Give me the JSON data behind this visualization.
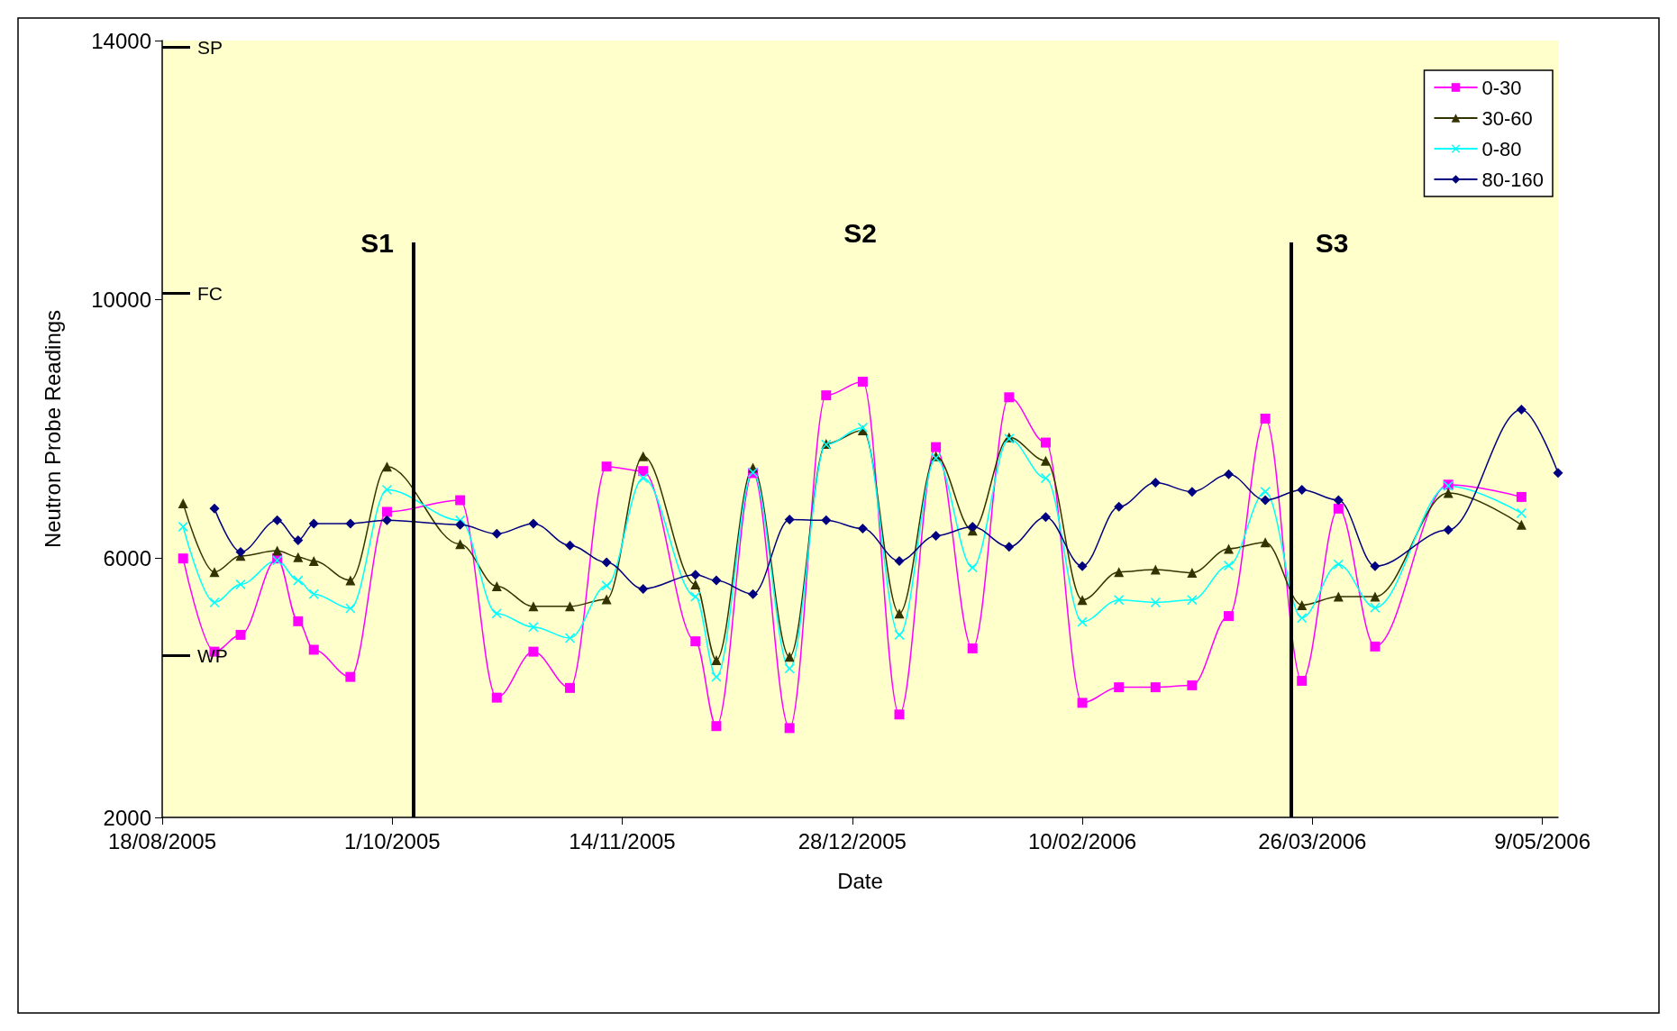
{
  "chart_data": {
    "type": "line",
    "xlabel": "Date",
    "ylabel": "Neutron Probe Readings",
    "x": [
      "2005-08-22",
      "2005-08-28",
      "2005-09-02",
      "2005-09-09",
      "2005-09-13",
      "2005-09-16",
      "2005-09-23",
      "2005-09-30",
      "2005-10-14",
      "2005-10-21",
      "2005-10-28",
      "2005-11-04",
      "2005-11-11",
      "2005-11-18",
      "2005-11-28",
      "2005-12-02",
      "2005-12-09",
      "2005-12-16",
      "2005-12-23",
      "2005-12-30",
      "2006-01-06",
      "2006-01-13",
      "2006-01-20",
      "2006-01-27",
      "2006-02-03",
      "2006-02-10",
      "2006-02-17",
      "2006-02-24",
      "2006-03-03",
      "2006-03-10",
      "2006-03-17",
      "2006-03-24",
      "2006-03-31",
      "2006-04-07",
      "2006-04-21",
      "2006-05-05"
    ],
    "series": [
      {
        "name": "0-30",
        "color": "#ff00ff",
        "marker": "square",
        "values": [
          6000,
          4560,
          4820,
          6000,
          5030,
          4590,
          4170,
          6720,
          6900,
          3850,
          4560,
          4000,
          7420,
          7350,
          4720,
          3410,
          7320,
          3380,
          8520,
          8730,
          3590,
          7720,
          4610,
          8490,
          7790,
          3770,
          4010,
          4010,
          4040,
          5110,
          8160,
          4110,
          6770,
          4640,
          7140,
          6950
        ]
      },
      {
        "name": "30-60",
        "color": "#333300",
        "marker": "triangle",
        "values": [
          6850,
          5790,
          6040,
          6120,
          6020,
          5960,
          5660,
          7420,
          6220,
          5570,
          5260,
          5260,
          5370,
          7580,
          5600,
          4430,
          7400,
          4480,
          7770,
          7980,
          5150,
          7580,
          6430,
          7870,
          7510,
          5360,
          5790,
          5830,
          5780,
          6150,
          6250,
          5280,
          5410,
          5410,
          7010,
          6520
        ]
      },
      {
        "name": "0-80",
        "color": "#00ffff",
        "marker": "cross",
        "values": [
          6490,
          5320,
          5600,
          5970,
          5660,
          5450,
          5230,
          7060,
          6590,
          5150,
          4940,
          4770,
          5580,
          7240,
          5410,
          4170,
          7330,
          4300,
          7760,
          8020,
          4820,
          7550,
          5860,
          7850,
          7240,
          5020,
          5360,
          5320,
          5360,
          5890,
          7030,
          5080,
          5910,
          5240,
          7120,
          6700
        ]
      },
      {
        "name": "80-160",
        "color": "#000080",
        "marker": "diamond",
        "x": [
          "2005-08-28",
          "2005-09-02",
          "2005-09-09",
          "2005-09-13",
          "2005-09-16",
          "2005-09-23",
          "2005-09-30",
          "2005-10-14",
          "2005-10-21",
          "2005-10-28",
          "2005-11-04",
          "2005-11-11",
          "2005-11-18",
          "2005-11-28",
          "2005-12-02",
          "2005-12-09",
          "2005-12-16",
          "2005-12-23",
          "2005-12-30",
          "2006-01-06",
          "2006-01-13",
          "2006-01-20",
          "2006-01-27",
          "2006-02-03",
          "2006-02-10",
          "2006-02-17",
          "2006-02-24",
          "2006-03-03",
          "2006-03-10",
          "2006-03-17",
          "2006-03-24",
          "2006-03-31",
          "2006-04-07",
          "2006-04-21",
          "2006-05-05",
          "2006-05-12"
        ],
        "values": [
          6770,
          6100,
          6590,
          6280,
          6540,
          6540,
          6590,
          6520,
          6380,
          6540,
          6200,
          5940,
          5530,
          5750,
          5660,
          5450,
          6600,
          6590,
          6460,
          5960,
          6350,
          6490,
          6180,
          6640,
          5880,
          6800,
          7170,
          7030,
          7300,
          6900,
          7060,
          6900,
          5880,
          6440,
          8300,
          7320
        ]
      }
    ],
    "xlim": [
      "2005-08-18",
      "2006-05-12"
    ],
    "xticks": [
      {
        "value": "2005-08-18",
        "label": "18/08/2005"
      },
      {
        "value": "2005-10-01",
        "label": "1/10/2005"
      },
      {
        "value": "2005-11-14",
        "label": "14/11/2005"
      },
      {
        "value": "2005-12-28",
        "label": "28/12/2005"
      },
      {
        "value": "2006-02-10",
        "label": "10/02/2006"
      },
      {
        "value": "2006-03-26",
        "label": "26/03/2006"
      },
      {
        "value": "2006-05-09",
        "label": "9/05/2006"
      }
    ],
    "ylim": [
      2000,
      14000
    ],
    "yticks": [
      2000,
      6000,
      10000,
      14000
    ],
    "grid": false,
    "legend": "top right",
    "ref_lines": [
      {
        "axis": "x",
        "value": "2005-10-05",
        "label": "S1",
        "color": "#000000"
      },
      {
        "axis": "x",
        "value": "2006-03-22",
        "label": "S3",
        "color": "#000000"
      },
      {
        "axis": "y",
        "value": 13900,
        "label": "SP",
        "color": "#000000"
      },
      {
        "axis": "y",
        "value": 10100,
        "label": "FC",
        "color": "#000000"
      },
      {
        "axis": "y",
        "value": 4500,
        "label": "WP",
        "color": "#000000"
      }
    ],
    "annotations": [
      "S2"
    ]
  }
}
